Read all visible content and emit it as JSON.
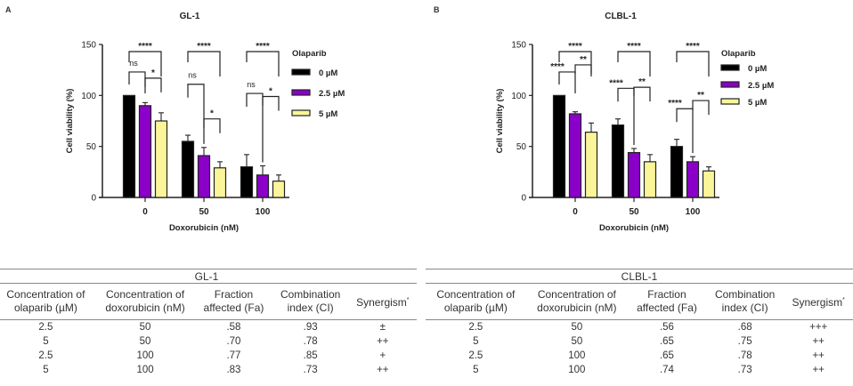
{
  "panels": [
    "A",
    "B"
  ],
  "chart_data": [
    {
      "type": "bar",
      "title": "GL-1",
      "xlabel": "Doxorubicin (nM)",
      "ylabel": "Cell viability (%)",
      "ylim": [
        0,
        150
      ],
      "yticks": [
        0,
        50,
        100,
        150
      ],
      "categories": [
        "0",
        "50",
        "100"
      ],
      "legend_title": "Olaparib",
      "legend_position": "right",
      "series": [
        {
          "name": "0 µM",
          "color": "#000000",
          "values": [
            100,
            55,
            30
          ],
          "errors": [
            0,
            6,
            12
          ]
        },
        {
          "name": "2.5 µM",
          "color": "#8b00c9",
          "values": [
            90,
            41,
            22
          ],
          "errors": [
            3,
            8,
            9
          ]
        },
        {
          "name": "5 µM",
          "color": "#fbf59a",
          "values": [
            75,
            29,
            16
          ],
          "errors": [
            8,
            6,
            6
          ]
        }
      ],
      "significance": [
        {
          "group": 0,
          "pair": [
            0,
            2
          ],
          "label": "****"
        },
        {
          "group": 0,
          "pair": [
            0,
            1
          ],
          "label": "ns"
        },
        {
          "group": 0,
          "pair": [
            1,
            2
          ],
          "label": "*"
        },
        {
          "group": 1,
          "pair": [
            0,
            2
          ],
          "label": "****"
        },
        {
          "group": 1,
          "pair": [
            0,
            1
          ],
          "label": "ns"
        },
        {
          "group": 1,
          "pair": [
            1,
            2
          ],
          "label": "*"
        },
        {
          "group": 2,
          "pair": [
            0,
            2
          ],
          "label": "****"
        },
        {
          "group": 2,
          "pair": [
            0,
            1
          ],
          "label": "ns"
        },
        {
          "group": 2,
          "pair": [
            1,
            2
          ],
          "label": "*"
        }
      ]
    },
    {
      "type": "bar",
      "title": "CLBL-1",
      "xlabel": "Doxorubicin (nM)",
      "ylabel": "Cell viability (%)",
      "ylim": [
        0,
        150
      ],
      "yticks": [
        0,
        50,
        100,
        150
      ],
      "categories": [
        "0",
        "50",
        "100"
      ],
      "legend_title": "Olaparib",
      "legend_position": "right",
      "series": [
        {
          "name": "0 µM",
          "color": "#000000",
          "values": [
            100,
            71,
            50
          ],
          "errors": [
            0,
            6,
            7
          ]
        },
        {
          "name": "2.5 µM",
          "color": "#8b00c9",
          "values": [
            82,
            44,
            35
          ],
          "errors": [
            2,
            4,
            5
          ]
        },
        {
          "name": "5 µM",
          "color": "#fbf59a",
          "values": [
            64,
            35,
            26
          ],
          "errors": [
            9,
            7,
            4
          ]
        }
      ],
      "significance": [
        {
          "group": 0,
          "pair": [
            0,
            2
          ],
          "label": "****"
        },
        {
          "group": 0,
          "pair": [
            0,
            1
          ],
          "label": "****"
        },
        {
          "group": 0,
          "pair": [
            1,
            2
          ],
          "label": "**"
        },
        {
          "group": 1,
          "pair": [
            0,
            2
          ],
          "label": "****"
        },
        {
          "group": 1,
          "pair": [
            0,
            1
          ],
          "label": "****"
        },
        {
          "group": 1,
          "pair": [
            1,
            2
          ],
          "label": "**"
        },
        {
          "group": 2,
          "pair": [
            0,
            2
          ],
          "label": "****"
        },
        {
          "group": 2,
          "pair": [
            0,
            1
          ],
          "label": "****"
        },
        {
          "group": 2,
          "pair": [
            1,
            2
          ],
          "label": "**"
        }
      ]
    }
  ],
  "tables": [
    {
      "title": "GL-1",
      "headers": [
        [
          "Concentration of",
          "olaparib (µM)"
        ],
        [
          "Concentration of",
          "doxorubicin (nM)"
        ],
        [
          "Fraction",
          "affected (Fa)"
        ],
        [
          "Combination",
          "index (CI)"
        ],
        [
          "Synergism",
          ""
        ]
      ],
      "synergism_mark": "*",
      "rows": [
        [
          "2.5",
          "50",
          ".58",
          ".93",
          "±"
        ],
        [
          "5",
          "50",
          ".70",
          ".78",
          "++"
        ],
        [
          "2.5",
          "100",
          ".77",
          ".85",
          "+"
        ],
        [
          "5",
          "100",
          ".83",
          ".73",
          "++"
        ]
      ]
    },
    {
      "title": "CLBL-1",
      "headers": [
        [
          "Concentration of",
          "olaparib (µM)"
        ],
        [
          "Concentration of",
          "doxorubicin (nM)"
        ],
        [
          "Fraction",
          "affected (Fa)"
        ],
        [
          "Combination",
          "index (CI)"
        ],
        [
          "Synergism",
          ""
        ]
      ],
      "synergism_mark": "*",
      "rows": [
        [
          "2.5",
          "50",
          ".56",
          ".68",
          "+++"
        ],
        [
          "5",
          "50",
          ".65",
          ".75",
          "++"
        ],
        [
          "2.5",
          "100",
          ".65",
          ".78",
          "++"
        ],
        [
          "5",
          "100",
          ".74",
          ".73",
          "++"
        ]
      ]
    }
  ]
}
